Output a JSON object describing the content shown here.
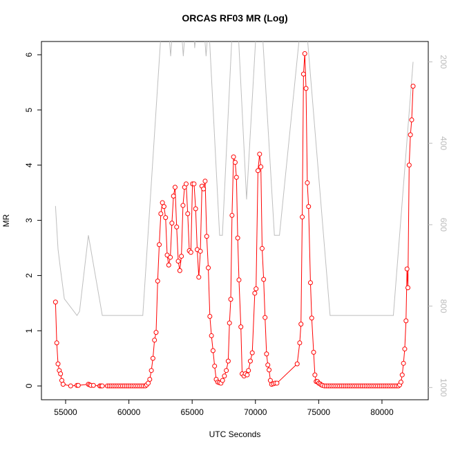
{
  "chart_data": {
    "type": "line",
    "title": "ORCAS RF03 MR (Log)",
    "x_label": "UTC Seconds",
    "y_label": "MR",
    "xlim": [
      53090,
      83660
    ],
    "ylim": [
      -0.25,
      6.24
    ],
    "y2lim": [
      1030,
      150
    ],
    "xticks": [
      55000,
      60000,
      65000,
      70000,
      75000,
      80000
    ],
    "yticks": [
      0,
      1,
      2,
      3,
      4,
      5,
      6
    ],
    "y2ticks": [
      200,
      400,
      600,
      800,
      1000
    ],
    "series": [
      {
        "color": "#ff0000",
        "x": [
          54200,
          54300,
          54400,
          54500,
          54600,
          54700,
          54800,
          55400,
          55900,
          56000,
          56800,
          56900,
          57000,
          57200,
          57700,
          57800,
          57900,
          58300,
          58450,
          58600,
          58750,
          58900,
          59050,
          59200,
          59350,
          59500,
          59650,
          59800,
          59950,
          60100,
          60250,
          60400,
          60550,
          60700,
          60850,
          61000,
          61150,
          61300,
          61400,
          61525,
          61650,
          61775,
          61900,
          62025,
          62150,
          62275,
          62400,
          62525,
          62650,
          62775,
          62900,
          63025,
          63150,
          63275,
          63400,
          63525,
          63650,
          63775,
          63900,
          64025,
          64150,
          64275,
          64400,
          64525,
          64650,
          64775,
          64900,
          65025,
          65150,
          65275,
          65400,
          65525,
          65650,
          65775,
          65900,
          66025,
          66150,
          66275,
          66400,
          66525,
          66650,
          66775,
          66900,
          67025,
          67150,
          67275,
          67400,
          67550,
          67700,
          67850,
          67950,
          68050,
          68150,
          68270,
          68400,
          68500,
          68600,
          68700,
          68850,
          68950,
          69100,
          69200,
          69350,
          69450,
          69600,
          69750,
          69950,
          70050,
          70200,
          70330,
          70430,
          70530,
          70650,
          70760,
          70880,
          70980,
          71080,
          71180,
          71280,
          71420,
          71560,
          71700,
          73300,
          73500,
          73600,
          73700,
          73800,
          73900,
          74000,
          74100,
          74200,
          74350,
          74450,
          74600,
          74700,
          74800,
          74900,
          75000,
          75100,
          75200,
          75300,
          75450,
          75600,
          75750,
          75900,
          76050,
          76200,
          76350,
          76500,
          76650,
          76800,
          76950,
          77100,
          77250,
          77400,
          77550,
          77700,
          77850,
          78000,
          78150,
          78300,
          78450,
          78600,
          78750,
          78900,
          79050,
          79200,
          79350,
          79500,
          79650,
          79800,
          79950,
          80100,
          80250,
          80400,
          80550,
          80700,
          80850,
          81000,
          81150,
          81300,
          81400,
          81500,
          81600,
          81700,
          81800,
          81900,
          81980,
          82050,
          82150,
          82250,
          82350,
          82460
        ],
        "values": [
          1.52,
          0.78,
          0.4,
          0.28,
          0.22,
          0.1,
          0.03,
          0,
          0.01,
          0.01,
          0.03,
          0.02,
          0.01,
          0.01,
          0,
          0,
          0,
          0,
          0,
          0,
          0,
          0,
          0,
          0,
          0,
          0,
          0,
          0,
          0,
          0,
          0,
          0,
          0,
          0,
          0,
          0,
          0,
          0,
          0.02,
          0.05,
          0.12,
          0.28,
          0.5,
          0.83,
          0.97,
          1.9,
          2.56,
          3.12,
          3.32,
          3.25,
          3.05,
          2.37,
          2.19,
          2.33,
          2.95,
          3.44,
          3.6,
          2.88,
          2.26,
          2.09,
          2.35,
          3.27,
          3.6,
          3.66,
          3.12,
          2.45,
          2.42,
          3.66,
          3.66,
          3.21,
          2.47,
          1.97,
          2.44,
          3.62,
          3.57,
          3.71,
          2.71,
          2.14,
          1.26,
          0.91,
          0.64,
          0.36,
          0.12,
          0.07,
          0.06,
          0.05,
          0.1,
          0.18,
          0.28,
          0.45,
          1.14,
          1.57,
          3.09,
          4.15,
          4.05,
          3.78,
          2.68,
          1.92,
          1.07,
          0.22,
          0.18,
          0.22,
          0.2,
          0.28,
          0.45,
          0.6,
          1.68,
          1.76,
          3.9,
          4.2,
          3.97,
          2.49,
          1.93,
          1.24,
          0.58,
          0.38,
          0.29,
          0.1,
          0.03,
          0.04,
          0.05,
          0.05,
          0.4,
          0.78,
          1.12,
          3.06,
          5.65,
          6.02,
          5.39,
          3.68,
          3.25,
          1.87,
          1.23,
          0.61,
          0.2,
          0.08,
          0.08,
          0.05,
          0.04,
          0.02,
          0.01,
          0,
          0,
          0,
          0,
          0,
          0,
          0,
          0,
          0,
          0,
          0,
          0,
          0,
          0,
          0,
          0,
          0,
          0,
          0,
          0,
          0,
          0,
          0,
          0,
          0,
          0,
          0,
          0,
          0,
          0,
          0,
          0,
          0,
          0,
          0,
          0,
          0,
          0,
          0,
          0,
          0.02,
          0.07,
          0.2,
          0.41,
          0.67,
          1.18,
          2.12,
          1.78,
          4.0,
          4.55,
          4.82,
          5.43
        ]
      },
      {
        "color": "#bebebe",
        "axis": "y2",
        "x": [
          54200,
          54400,
          54600,
          54900,
          55900,
          56100,
          56800,
          57900,
          61100,
          62600,
          63100,
          63300,
          63500,
          64100,
          64300,
          64500,
          65100,
          65200,
          65400,
          65900,
          66100,
          66300,
          67170,
          67390,
          68200,
          68600,
          69300,
          70100,
          70500,
          71500,
          71900,
          73600,
          74000,
          75900,
          80900,
          82460
        ],
        "values": [
          554,
          660,
          711,
          782,
          823,
          813,
          626,
          823,
          823,
          100,
          100,
          186,
          100,
          100,
          186,
          100,
          100,
          166,
          100,
          100,
          186,
          100,
          626,
          626,
          100,
          100,
          538,
          100,
          100,
          626,
          626,
          100,
          100,
          823,
          823,
          200
        ]
      }
    ]
  }
}
